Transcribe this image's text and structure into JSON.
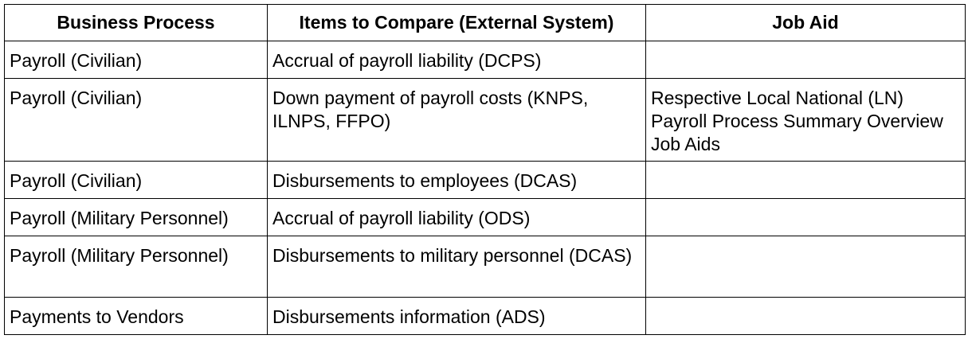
{
  "table": {
    "headers": {
      "business_process": "Business Process",
      "items_to_compare": "Items to Compare (External System)",
      "job_aid": "Job Aid"
    },
    "rows": [
      {
        "business_process": "Payroll (Civilian)",
        "items_to_compare": "Accrual of payroll liability (DCPS)",
        "job_aid": ""
      },
      {
        "business_process": "Payroll (Civilian)",
        "items_to_compare": "Down payment of payroll costs (KNPS, ILNPS, FFPO)",
        "job_aid": "Respective Local National (LN) Payroll Process Summary Overview Job Aids"
      },
      {
        "business_process": "Payroll (Civilian)",
        "items_to_compare": "Disbursements to employees (DCAS)",
        "job_aid": ""
      },
      {
        "business_process": "Payroll (Military Personnel)",
        "items_to_compare": "Accrual of payroll liability (ODS)",
        "job_aid": ""
      },
      {
        "business_process": "Payroll (Military Personnel)",
        "items_to_compare": "Disbursements to military personnel (DCAS)",
        "job_aid": ""
      },
      {
        "business_process": "Payments to Vendors",
        "items_to_compare": "Disbursements information (ADS)",
        "job_aid": ""
      }
    ]
  }
}
